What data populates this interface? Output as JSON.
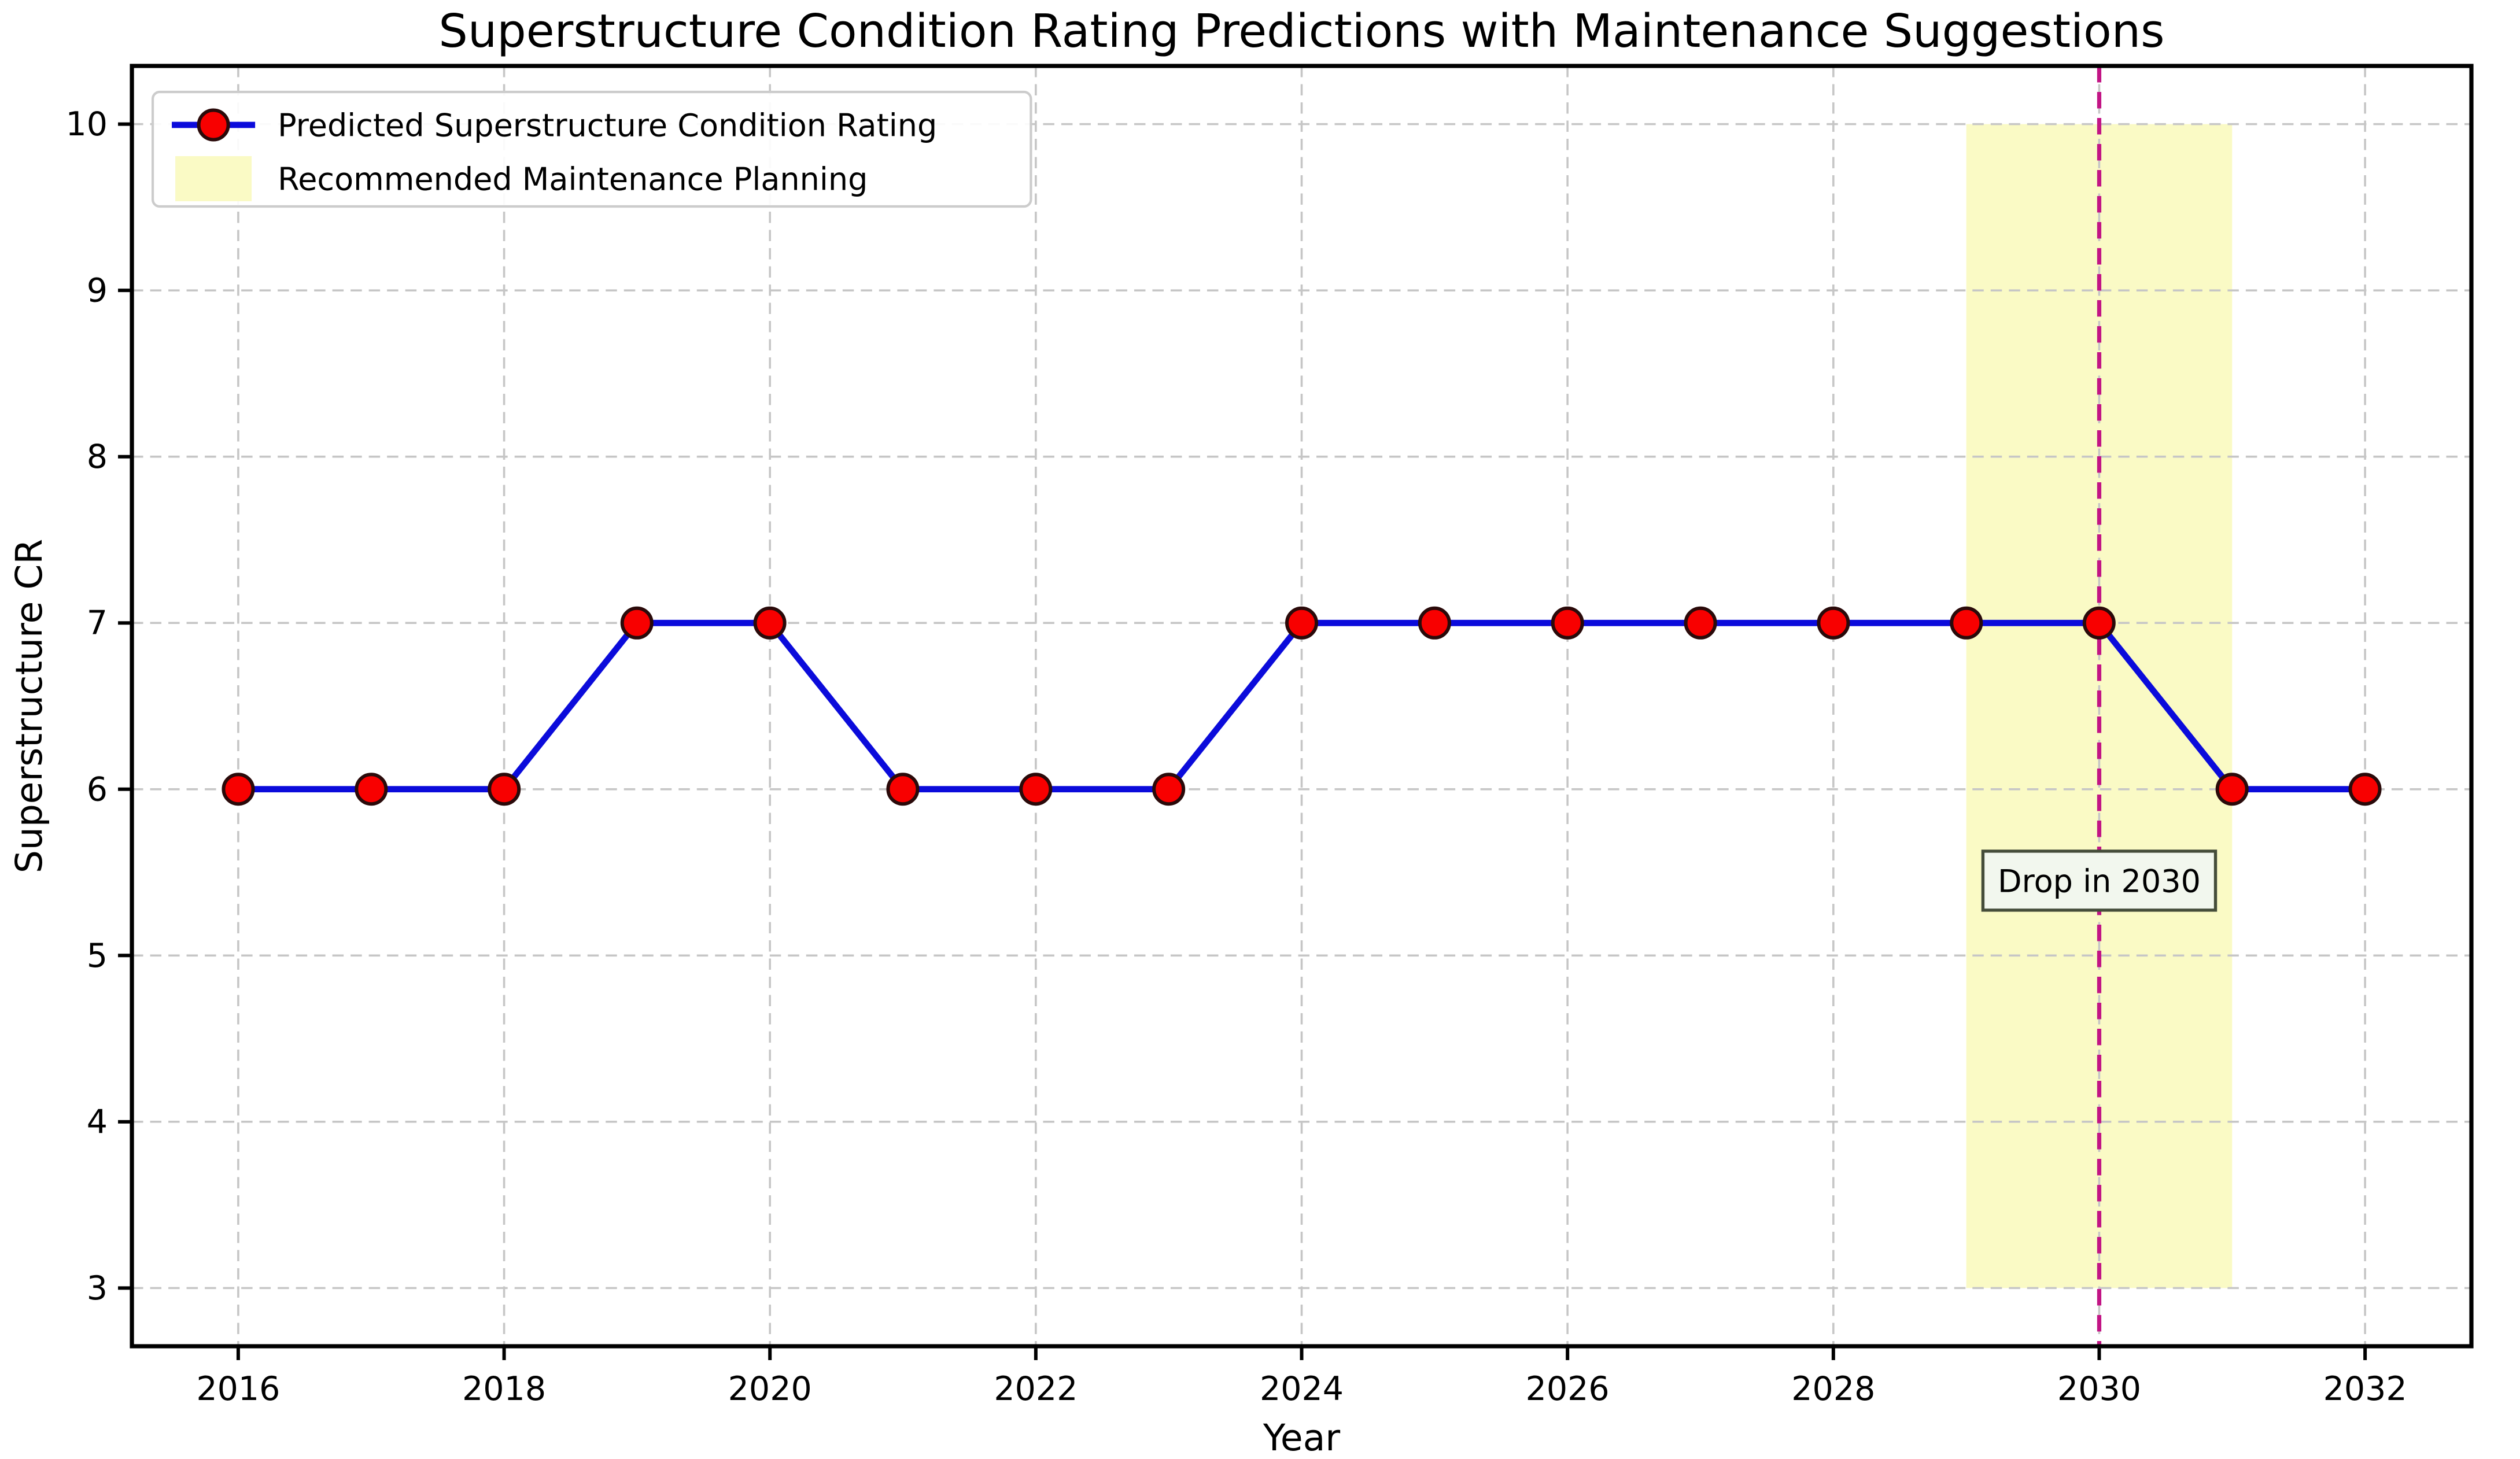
{
  "chart_data": {
    "type": "line",
    "title": "Superstructure Condition Rating Predictions with Maintenance Suggestions",
    "xlabel": "Year",
    "ylabel": "Superstructure CR",
    "x": [
      2016,
      2017,
      2018,
      2019,
      2020,
      2021,
      2022,
      2023,
      2024,
      2025,
      2026,
      2027,
      2028,
      2029,
      2030,
      2031,
      2032
    ],
    "series": [
      {
        "name": "Predicted Superstructure Condition Rating",
        "values": [
          6,
          6,
          6,
          7,
          7,
          6,
          6,
          6,
          7,
          7,
          7,
          7,
          7,
          7,
          7,
          6,
          6
        ],
        "line_color": "#0b0bdb",
        "line_width": 3.6,
        "marker_shape": "circle",
        "marker_fill": "#f80000",
        "marker_edge": "#2a0a0a",
        "marker_radius": 8.5
      }
    ],
    "x_ticks": [
      2016,
      2018,
      2020,
      2022,
      2024,
      2026,
      2028,
      2030,
      2032
    ],
    "x_tick_labels": [
      "2016",
      "2018",
      "2020",
      "2022",
      "2024",
      "2026",
      "2028",
      "2030",
      "2032"
    ],
    "y_ticks": [
      3,
      4,
      5,
      6,
      7,
      8,
      9,
      10
    ],
    "y_tick_labels": [
      "3",
      "4",
      "5",
      "6",
      "7",
      "8",
      "9",
      "10"
    ],
    "xlim": [
      2015.2,
      2032.8
    ],
    "ylim": [
      2.65,
      10.35
    ],
    "grid": true,
    "grid_color": "#c6c6c6",
    "spine_color": "#000000",
    "band": {
      "label": "Recommended Maintenance Planning",
      "x0": 2029,
      "x1": 2031,
      "y0": 3,
      "y1": 10,
      "color": "#fafac5"
    },
    "vline": {
      "x": 2030,
      "color": "#c21585",
      "style": "dashed",
      "width": 2.4
    },
    "annotation": {
      "text": "Drop in 2030",
      "x": 2030,
      "y": 5.45,
      "text_color": "#8b008b",
      "box_face": "#f2f7ee",
      "box_edge": "#454d3a"
    },
    "legend": {
      "position": "upper left",
      "border_color": "#cccccc",
      "face_color": "#ffffff",
      "entries": [
        {
          "label": "Predicted Superstructure Condition Rating",
          "type": "line-marker"
        },
        {
          "label": "Recommended Maintenance Planning",
          "type": "patch"
        }
      ]
    }
  }
}
